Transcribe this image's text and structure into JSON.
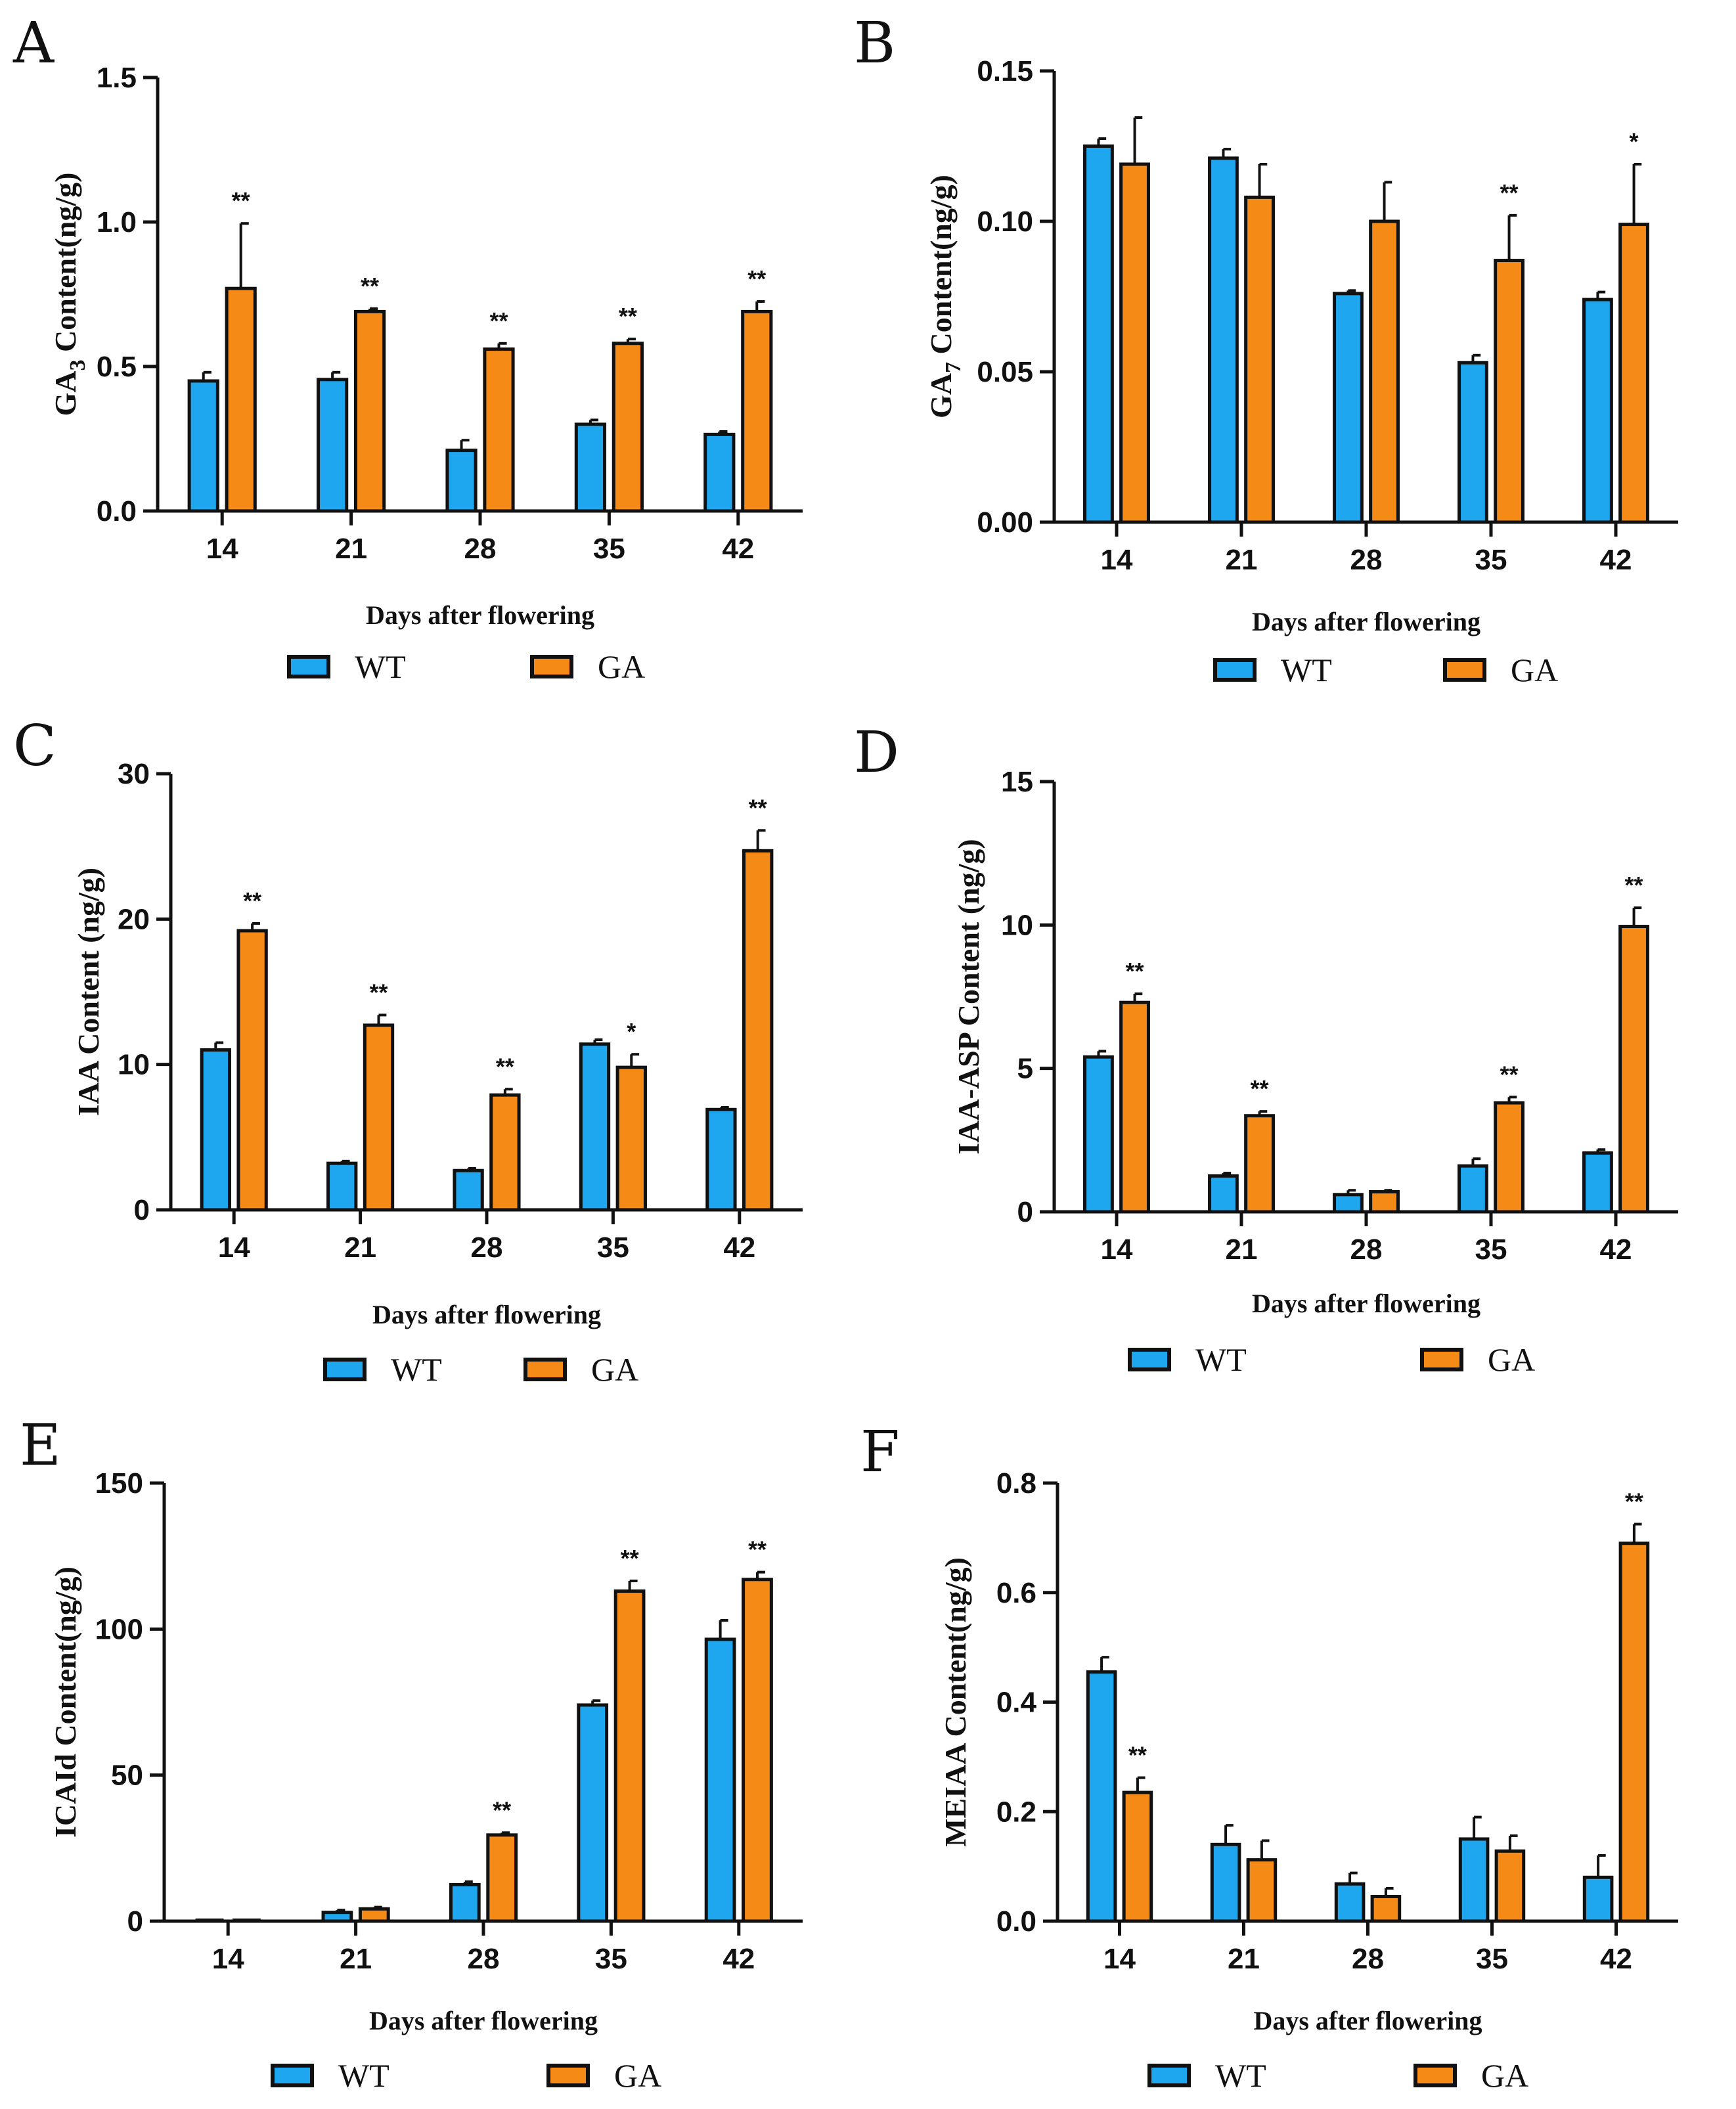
{
  "chart_data": [
    {
      "panel": "A",
      "type": "bar",
      "ylabel_main": "GA",
      "ylabel_sub": "3",
      "ylabel_rest": " Content(ng/g)",
      "xlabel": "Days after flowering",
      "categories": [
        "14",
        "21",
        "28",
        "35",
        "42"
      ],
      "ylim": [
        0,
        1.5
      ],
      "yticks": [
        0,
        0.5,
        1.0,
        1.5
      ],
      "ytick_labels": [
        "0.0",
        "0.5",
        "1.0",
        "1.5"
      ],
      "series": [
        {
          "name": "WT",
          "color": "#1ea6ee",
          "values": [
            0.45,
            0.455,
            0.21,
            0.3,
            0.265
          ],
          "errors": [
            0.03,
            0.025,
            0.035,
            0.015,
            0.01
          ]
        },
        {
          "name": "GA",
          "color": "#f58a16",
          "values": [
            0.77,
            0.69,
            0.56,
            0.58,
            0.69
          ],
          "errors": [
            0.225,
            0.01,
            0.02,
            0.015,
            0.035
          ]
        }
      ],
      "significance": [
        "**",
        "**",
        "**",
        "**",
        "**"
      ]
    },
    {
      "panel": "B",
      "type": "bar",
      "ylabel_main": "GA",
      "ylabel_sub": "7",
      "ylabel_rest": " Content(ng/g)",
      "xlabel": "Days after flowering",
      "categories": [
        "14",
        "21",
        "28",
        "35",
        "42"
      ],
      "ylim": [
        0,
        0.15
      ],
      "yticks": [
        0,
        0.05,
        0.1,
        0.15
      ],
      "ytick_labels": [
        "0.00",
        "0.05",
        "0.10",
        "0.15"
      ],
      "series": [
        {
          "name": "WT",
          "color": "#1ea6ee",
          "values": [
            0.125,
            0.121,
            0.076,
            0.053,
            0.074
          ],
          "errors": [
            0.0025,
            0.003,
            0.001,
            0.0025,
            0.0025
          ]
        },
        {
          "name": "GA",
          "color": "#f58a16",
          "values": [
            0.119,
            0.108,
            0.1,
            0.087,
            0.099
          ],
          "errors": [
            0.0155,
            0.011,
            0.013,
            0.015,
            0.02
          ]
        }
      ],
      "significance": [
        "",
        "",
        "",
        "**",
        "*"
      ]
    },
    {
      "panel": "C",
      "type": "bar",
      "ylabel_main": "IAA Content (ng/g)",
      "ylabel_sub": "",
      "ylabel_rest": "",
      "xlabel": "Days after flowering",
      "categories": [
        "14",
        "21",
        "28",
        "35",
        "42"
      ],
      "ylim": [
        0,
        30
      ],
      "yticks": [
        0,
        10,
        20,
        30
      ],
      "ytick_labels": [
        "0",
        "10",
        "20",
        "30"
      ],
      "series": [
        {
          "name": "WT",
          "color": "#1ea6ee",
          "values": [
            11.0,
            3.2,
            2.7,
            11.4,
            6.9
          ],
          "errors": [
            0.5,
            0.15,
            0.15,
            0.3,
            0.15
          ]
        },
        {
          "name": "GA",
          "color": "#f58a16",
          "values": [
            19.2,
            12.7,
            7.9,
            9.8,
            24.7
          ],
          "errors": [
            0.5,
            0.7,
            0.4,
            0.9,
            1.4
          ]
        }
      ],
      "significance": [
        "**",
        "**",
        "**",
        "*",
        "**"
      ]
    },
    {
      "panel": "D",
      "type": "bar",
      "ylabel_main": "IAA-ASP Content (ng/g)",
      "ylabel_sub": "",
      "ylabel_rest": "",
      "xlabel": "Days after flowering",
      "categories": [
        "14",
        "21",
        "28",
        "35",
        "42"
      ],
      "ylim": [
        0,
        15
      ],
      "yticks": [
        0,
        5,
        10,
        15
      ],
      "ytick_labels": [
        "0",
        "5",
        "10",
        "15"
      ],
      "series": [
        {
          "name": "WT",
          "color": "#1ea6ee",
          "values": [
            5.4,
            1.25,
            0.6,
            1.6,
            2.05
          ],
          "errors": [
            0.2,
            0.1,
            0.15,
            0.25,
            0.12
          ]
        },
        {
          "name": "GA",
          "color": "#f58a16",
          "values": [
            7.3,
            3.35,
            0.7,
            3.8,
            9.95
          ],
          "errors": [
            0.3,
            0.15,
            0.05,
            0.2,
            0.65
          ]
        }
      ],
      "significance": [
        "**",
        "**",
        "",
        "**",
        "**"
      ]
    },
    {
      "panel": "E",
      "type": "bar",
      "ylabel_main": "ICAId Content(ng/g)",
      "ylabel_sub": "",
      "ylabel_rest": "",
      "xlabel": "Days after flowering",
      "categories": [
        "14",
        "21",
        "28",
        "35",
        "42"
      ],
      "ylim": [
        0,
        150
      ],
      "yticks": [
        0,
        50,
        100,
        150
      ],
      "ytick_labels": [
        "0",
        "50",
        "100",
        "150"
      ],
      "series": [
        {
          "name": "WT",
          "color": "#1ea6ee",
          "values": [
            0,
            3.0,
            12.5,
            74.0,
            96.5
          ],
          "errors": [
            0,
            0.8,
            1.0,
            1.5,
            6.5
          ]
        },
        {
          "name": "GA",
          "color": "#f58a16",
          "values": [
            0,
            4.2,
            29.5,
            113.0,
            117.0
          ],
          "errors": [
            0,
            0.6,
            0.8,
            3.5,
            2.5
          ]
        }
      ],
      "significance": [
        "",
        "",
        "**",
        "**",
        "**"
      ]
    },
    {
      "panel": "F",
      "type": "bar",
      "ylabel_main": "MEIAA Content(ng/g)",
      "ylabel_sub": "",
      "ylabel_rest": "",
      "xlabel": "Days after flowering",
      "categories": [
        "14",
        "21",
        "28",
        "35",
        "42"
      ],
      "ylim": [
        0,
        0.8
      ],
      "yticks": [
        0,
        0.2,
        0.4,
        0.6,
        0.8
      ],
      "ytick_labels": [
        "0.0",
        "0.2",
        "0.4",
        "0.6",
        "0.8"
      ],
      "series": [
        {
          "name": "WT",
          "color": "#1ea6ee",
          "values": [
            0.455,
            0.14,
            0.068,
            0.15,
            0.08
          ],
          "errors": [
            0.027,
            0.035,
            0.02,
            0.04,
            0.04
          ]
        },
        {
          "name": "GA",
          "color": "#f58a16",
          "values": [
            0.235,
            0.112,
            0.045,
            0.128,
            0.69
          ],
          "errors": [
            0.027,
            0.035,
            0.015,
            0.028,
            0.035
          ]
        }
      ],
      "significance": [
        "**",
        "",
        "",
        "",
        "**"
      ]
    }
  ]
}
